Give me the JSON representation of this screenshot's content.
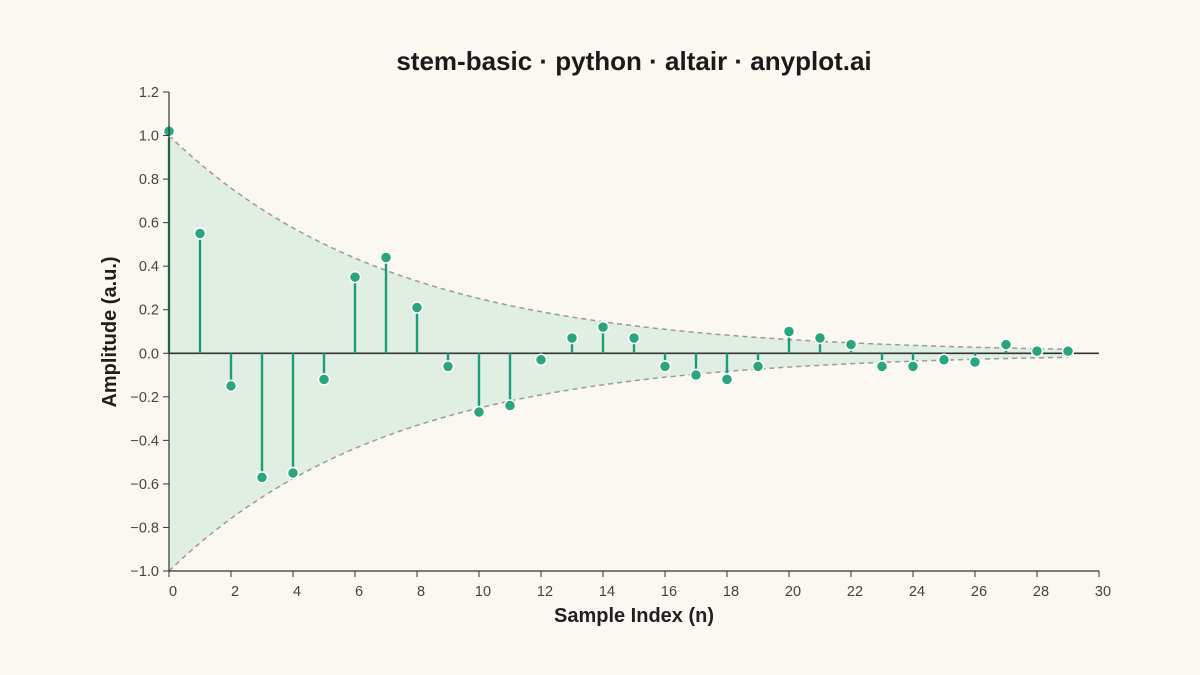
{
  "chart_data": {
    "type": "stem",
    "title": "stem-basic · python · altair · anyplot.ai",
    "xlabel": "Sample Index (n)",
    "ylabel": "Amplitude (a.u.)",
    "xlim": [
      0,
      30
    ],
    "ylim": [
      -1.0,
      1.2
    ],
    "x_ticks": [
      0,
      2,
      4,
      6,
      8,
      10,
      12,
      14,
      16,
      18,
      20,
      22,
      24,
      26,
      28,
      30
    ],
    "x_tick_labels": [
      "0",
      "2",
      "4",
      "6",
      "8",
      "10",
      "12",
      "14",
      "16",
      "18",
      "20",
      "22",
      "24",
      "26",
      "28",
      "30"
    ],
    "y_ticks": [
      -1.0,
      -0.8,
      -0.6,
      -0.4,
      -0.2,
      0.0,
      0.2,
      0.4,
      0.6,
      0.8,
      1.0,
      1.2
    ],
    "y_tick_labels": [
      "−1.0",
      "−0.8",
      "−0.6",
      "−0.4",
      "−0.2",
      "0.0",
      "0.2",
      "0.4",
      "0.6",
      "0.8",
      "1.0",
      "1.2"
    ],
    "baseline": 0.0,
    "grid": false,
    "envelope_decay": 0.138,
    "series": [
      {
        "x": [
          0,
          1,
          2,
          3,
          4,
          5,
          6,
          7,
          8,
          9,
          10,
          11,
          12,
          13,
          14,
          15,
          16,
          17,
          18,
          19,
          20,
          21,
          22,
          23,
          24,
          25,
          26,
          27,
          28,
          29
        ],
        "values": [
          1.02,
          0.55,
          -0.15,
          -0.57,
          -0.55,
          -0.12,
          0.35,
          0.44,
          0.21,
          -0.06,
          -0.27,
          -0.24,
          -0.03,
          0.07,
          0.12,
          0.07,
          -0.06,
          -0.1,
          -0.12,
          -0.06,
          0.1,
          0.07,
          0.04,
          -0.06,
          -0.06,
          -0.03,
          -0.04,
          0.04,
          0.01,
          0.01
        ]
      }
    ],
    "colors": {
      "stem": "#1A9E77",
      "marker": "#2AA57E",
      "envelope_fill": "#D5EBDC",
      "envelope_line": "#9A9A9A",
      "background": "#FAF8F1"
    }
  }
}
